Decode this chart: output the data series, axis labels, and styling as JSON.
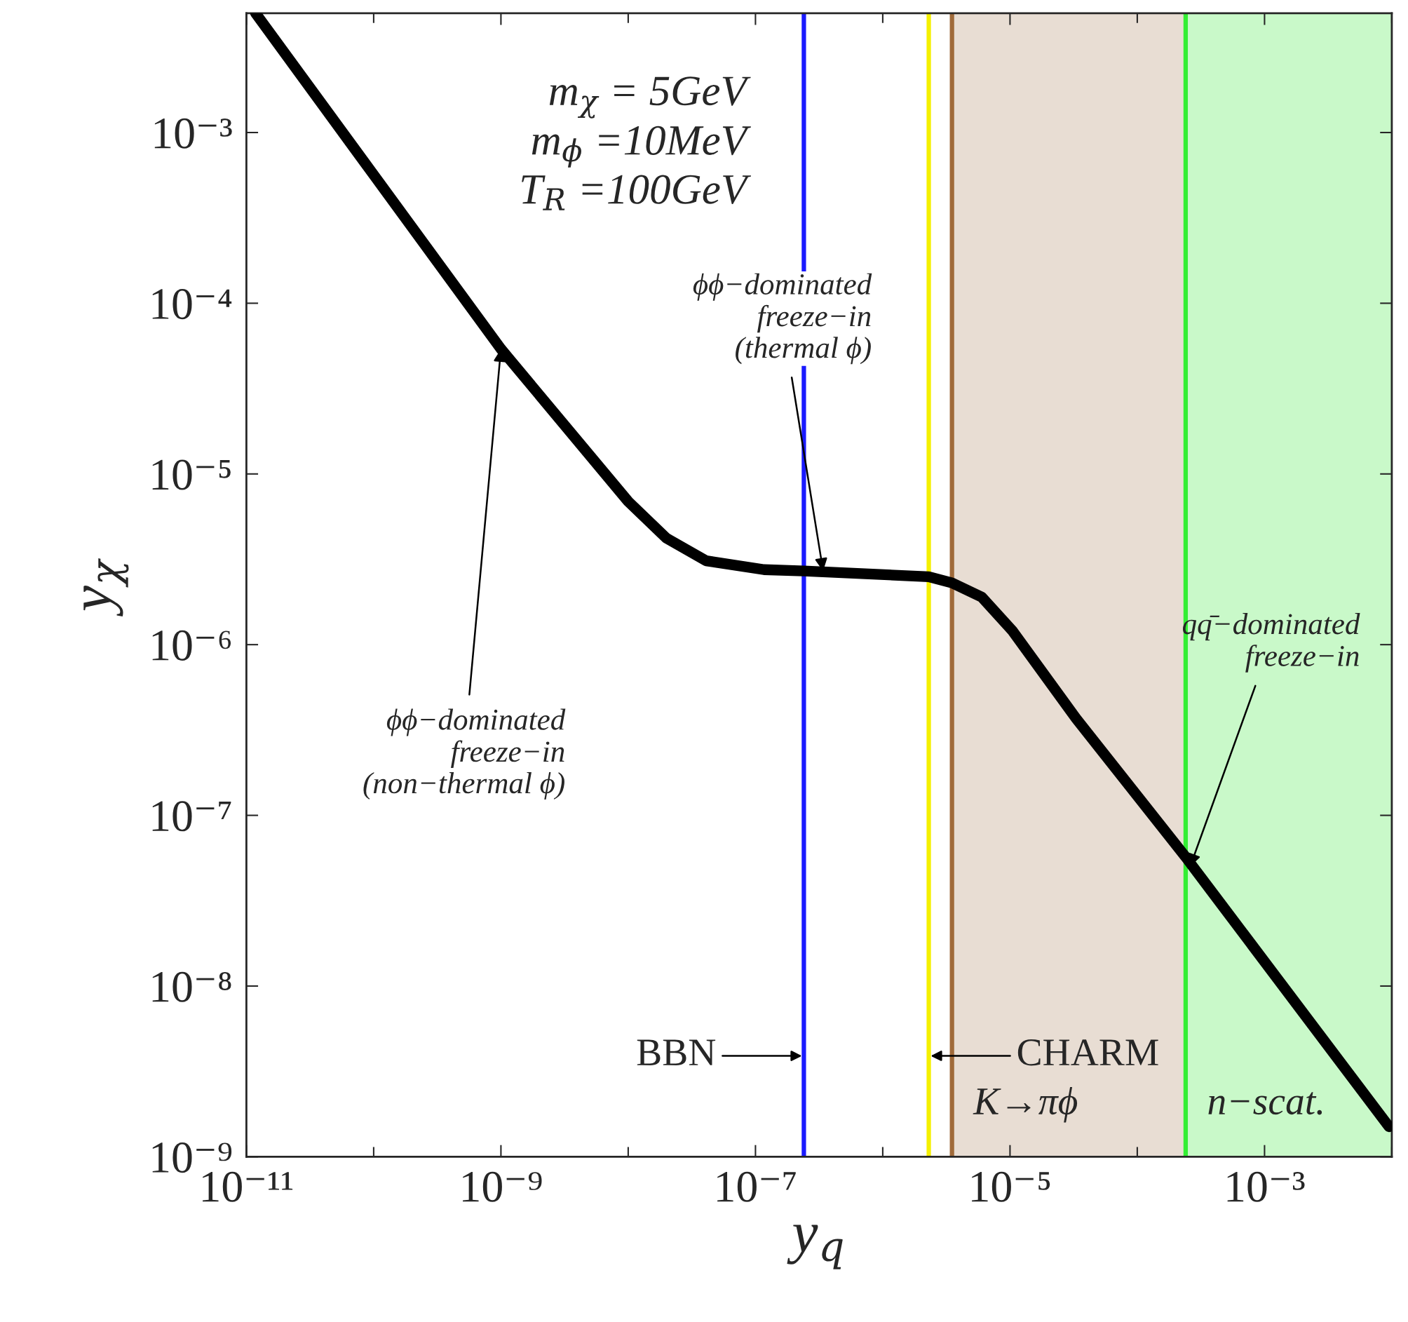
{
  "chart_data": {
    "type": "line",
    "xlabel": "y$_{q}$",
    "ylabel": "y$_{χ}$",
    "log": "xy",
    "grid": false,
    "marker": "none",
    "line_style": "solid",
    "x": [
      1.18e-11,
      1e-09,
      1e-08,
      2e-08,
      4.1e-08,
      1.17e-07,
      2.4e-07,
      2.3e-06,
      3.5e-06,
      6e-06,
      1.05e-05,
      3.3e-05,
      0.00024,
      0.0095
    ],
    "series": [
      {
        "color": "#000000",
        "values": [
          0.005,
          5.4e-05,
          6.9e-06,
          4.2e-06,
          3.1e-06,
          2.75e-06,
          2.7e-06,
          2.5e-06,
          2.3e-06,
          1.9e-06,
          1.2e-06,
          3.7e-07,
          5.7e-08,
          1.5e-09
        ]
      }
    ],
    "xlim": [
      1e-11,
      0.01
    ],
    "ylim": [
      1e-09,
      0.005
    ],
    "xticks": [
      {
        "value": 1e-11,
        "label": "10⁻¹¹"
      },
      {
        "value": 1e-09,
        "label": "10⁻⁹"
      },
      {
        "value": 1e-07,
        "label": "10⁻⁷"
      },
      {
        "value": 1e-05,
        "label": "10⁻⁵"
      },
      {
        "value": 0.001,
        "label": "10⁻³"
      }
    ],
    "yticks": [
      {
        "value": 1e-09,
        "label": "10⁻⁹"
      },
      {
        "value": 1e-08,
        "label": "10⁻⁸"
      },
      {
        "value": 1e-07,
        "label": "10⁻⁷"
      },
      {
        "value": 1e-06,
        "label": "10⁻⁶"
      },
      {
        "value": 1e-05,
        "label": "10⁻⁵"
      },
      {
        "value": 0.0001,
        "label": "10⁻⁴"
      },
      {
        "value": 0.001,
        "label": "10⁻³"
      }
    ],
    "ref_lines": [
      {
        "axis": "x",
        "value": 2.4e-07,
        "label": "BBN",
        "color": "#1a1aff"
      },
      {
        "axis": "x",
        "value": 2.3e-06,
        "label": "CHARM",
        "color": "#f5f000"
      },
      {
        "axis": "x",
        "value": 3.5e-06,
        "color": "#a06a3a"
      },
      {
        "axis": "x",
        "value": 0.00024,
        "color": "#33ee33"
      }
    ],
    "bands": [
      {
        "axis": "x",
        "from": 3.5e-06,
        "to": 0.00024,
        "label": "K→πϕ",
        "color": "#e8ddd3"
      },
      {
        "axis": "x",
        "from": 0.00024,
        "to": 0.01,
        "label": "n−scat.",
        "color": "#c9f9c9"
      }
    ],
    "annotations": [
      "m$_{χ}$ = 5GeV\nm$_{ϕ}$ =10MeV\nT$_{R}$ =100GeV",
      {
        "text": "ϕϕ−dominated\nfreeze−in\n(non−thermal ϕ)",
        "x": 1e-09,
        "y": 5.4e-05
      },
      {
        "text": "ϕϕ−dominated\nfreeze−in\n(thermal ϕ)",
        "x": 3.4e-07,
        "y": 2.7e-06
      },
      {
        "text": "qq̄−dominated\nfreeze−in",
        "x": 0.00026,
        "y": 5e-08
      }
    ]
  }
}
